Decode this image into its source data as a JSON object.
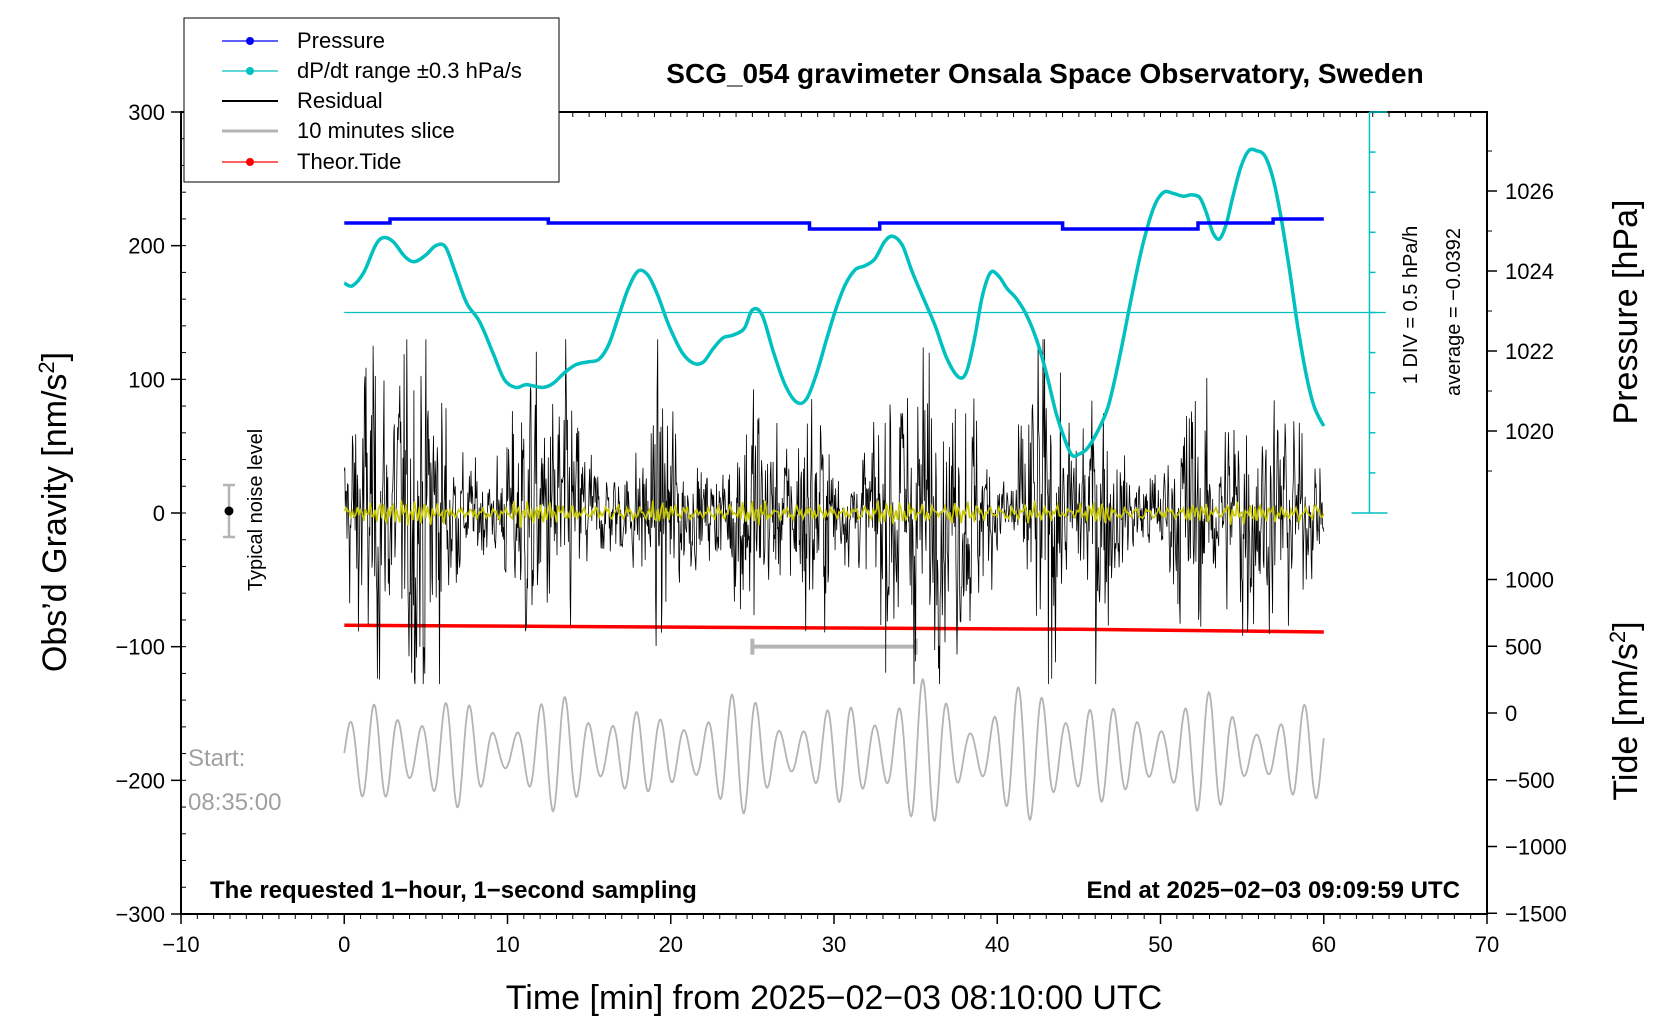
{
  "chart_data": {
    "type": "line",
    "title": "SCG_054 gravimeter Onsala Space Observatory, Sweden",
    "xlabel": "Time [min] from 2025−02−03 08:10:00 UTC",
    "ylabel_left_pre": "Obs’d Gravity [nm/s",
    "ylabel_left_sup": "2",
    "ylabel_left_post": "]",
    "ylabel_right_top": "Pressure [hPa]",
    "ylabel_right_bottom_pre": "Tide [nm/s",
    "ylabel_right_bottom_sup": "2",
    "ylabel_right_bottom_post": "]",
    "xlim": [
      -10,
      70
    ],
    "ylim": [
      -300,
      300
    ],
    "pressure_ylim": [
      1018,
      1028
    ],
    "tide_ylim": [
      -1500,
      1500
    ],
    "x_ticks": [
      "−10",
      "0",
      "10",
      "20",
      "30",
      "40",
      "50",
      "60",
      "70"
    ],
    "y_ticks": [
      "300",
      "200",
      "100",
      "0",
      "−100",
      "−200",
      "−300"
    ],
    "pressure_ticks": [
      "1026",
      "1024",
      "1022",
      "1020"
    ],
    "tide_ticks": [
      "1000",
      "500",
      "0",
      "−500",
      "−1000",
      "−1500"
    ],
    "legend": {
      "placement": "top-left",
      "entries": [
        "Pressure",
        "dP/dt range ±0.3 hPa/s",
        "Residual",
        "10 minutes slice",
        "Theor.Tide"
      ]
    },
    "annotations": {
      "noise_label": "Typical noise level",
      "div_label": "1 DIV = 0.5 hPa/h",
      "average_label": "average = −0.0392",
      "start_label": "Start:",
      "start_time": "08:35:00",
      "bottom_left": "The requested 1−hour, 1−second sampling",
      "bottom_right": "End at 2025−02−03 09:09:59 UTC"
    },
    "colors": {
      "pressure": "#0000ff",
      "dpdt": "#00c0c0",
      "residual": "#000000",
      "slice": "#b4b4b4",
      "tide": "#ff0000",
      "filtered": "#c8c800"
    },
    "series": [
      {
        "name": "Pressure",
        "unit": "hPa",
        "segments": [
          [
            0,
            1025.2
          ],
          [
            2.8,
            1025.3
          ],
          [
            12.5,
            1025.2
          ],
          [
            28.5,
            1025.05
          ],
          [
            32.8,
            1025.2
          ],
          [
            44.0,
            1025.05
          ],
          [
            52.3,
            1025.2
          ],
          [
            56.9,
            1025.3
          ],
          [
            60,
            1025.3
          ]
        ]
      },
      {
        "name": "dP/dt range ±0.3 hPa/s",
        "unit": "gravity axis",
        "x": [
          0,
          0.5,
          1.2,
          1.9,
          2.4,
          3.0,
          3.7,
          4.3,
          5.0,
          5.6,
          6.2,
          6.8,
          7.5,
          8.3,
          9.1,
          9.8,
          10.5,
          11.1,
          11.6,
          12.2,
          12.8,
          13.5,
          14.2,
          14.9,
          15.6,
          16.2,
          16.8,
          17.4,
          18.0,
          18.6,
          19.2,
          19.9,
          20.7,
          21.4,
          22.0,
          22.6,
          23.2,
          23.8,
          24.5,
          25.0,
          25.6,
          26.3,
          27.0,
          27.7,
          28.3,
          28.9,
          29.5,
          30.1,
          30.7,
          31.3,
          31.9,
          32.5,
          33.1,
          33.6,
          34.2,
          34.8,
          35.5,
          36.2,
          36.9,
          37.6,
          38.1,
          38.6,
          39.1,
          39.6,
          40.1,
          40.6,
          41.2,
          41.8,
          42.4,
          43.0,
          43.6,
          44.2,
          44.6,
          45.0,
          45.5,
          46.1,
          46.8,
          47.5,
          48.2,
          48.9,
          49.6,
          50.2,
          50.8,
          51.4,
          51.9,
          52.4,
          52.8,
          53.2,
          53.6,
          54.0,
          54.4,
          54.9,
          55.4,
          55.9,
          56.4,
          56.9,
          57.4,
          57.9,
          58.4,
          58.9,
          59.4,
          60.0
        ],
        "y": [
          172,
          170,
          180,
          200,
          206,
          203,
          192,
          188,
          193,
          200,
          199,
          180,
          157,
          143,
          120,
          100,
          94,
          96,
          95,
          94,
          97,
          105,
          111,
          113,
          115,
          126,
          147,
          168,
          181,
          178,
          163,
          140,
          120,
          112,
          113,
          123,
          131,
          133,
          138,
          152,
          148,
          120,
          96,
          83,
          85,
          103,
          128,
          152,
          171,
          182,
          185,
          190,
          203,
          207,
          200,
          180,
          160,
          140,
          116,
          102,
          105,
          130,
          163,
          180,
          177,
          168,
          160,
          148,
          130,
          105,
          75,
          53,
          43,
          44,
          48,
          60,
          80,
          117,
          160,
          200,
          229,
          240,
          239,
          237,
          238,
          236,
          225,
          210,
          205,
          215,
          235,
          258,
          271,
          271,
          267,
          250,
          220,
          182,
          140,
          105,
          80,
          65
        ]
      },
      {
        "name": "Residual",
        "unit": "nm/s²",
        "x_range": [
          0,
          60
        ],
        "samples": 3600
      },
      {
        "name": "10 minutes slice",
        "unit": "nm/s²",
        "x_range": [
          25,
          35
        ],
        "samples": 600
      },
      {
        "name": "Theor.Tide",
        "unit": "nm/s²",
        "x": [
          0,
          15,
          30,
          45,
          60
        ],
        "y": [
          -84,
          -85,
          -86,
          -87,
          -89
        ]
      }
    ]
  }
}
